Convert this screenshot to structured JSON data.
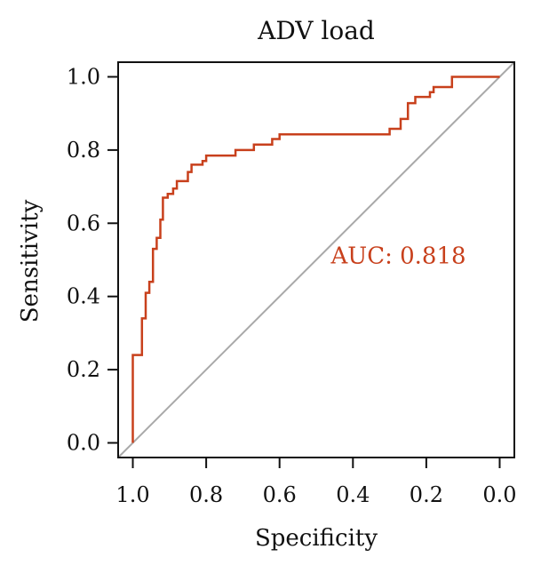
{
  "chart_data": {
    "type": "line",
    "title": "ADV load",
    "xlabel": "Specificity",
    "ylabel": "Sensitivity",
    "x_reversed": true,
    "xlim": [
      1.04,
      -0.04
    ],
    "ylim": [
      -0.04,
      1.04
    ],
    "xticks": [
      1.0,
      0.8,
      0.6,
      0.4,
      0.2,
      0.0
    ],
    "xtick_labels": [
      "1.0",
      "0.8",
      "0.6",
      "0.4",
      "0.2",
      "0.0"
    ],
    "yticks": [
      0.0,
      0.2,
      0.4,
      0.6,
      0.8,
      1.0
    ],
    "ytick_labels": [
      "0.0",
      "0.2",
      "0.4",
      "0.6",
      "0.8",
      "1.0"
    ],
    "grid": false,
    "series": [
      {
        "role": "roc",
        "color": "#c8401c",
        "points": [
          [
            1.0,
            0.0
          ],
          [
            1.0,
            0.24
          ],
          [
            0.975,
            0.24
          ],
          [
            0.975,
            0.34
          ],
          [
            0.965,
            0.34
          ],
          [
            0.965,
            0.41
          ],
          [
            0.955,
            0.41
          ],
          [
            0.955,
            0.44
          ],
          [
            0.945,
            0.44
          ],
          [
            0.945,
            0.53
          ],
          [
            0.935,
            0.53
          ],
          [
            0.935,
            0.56
          ],
          [
            0.925,
            0.56
          ],
          [
            0.925,
            0.61
          ],
          [
            0.918,
            0.61
          ],
          [
            0.918,
            0.67
          ],
          [
            0.905,
            0.67
          ],
          [
            0.905,
            0.68
          ],
          [
            0.89,
            0.68
          ],
          [
            0.89,
            0.695
          ],
          [
            0.88,
            0.695
          ],
          [
            0.88,
            0.715
          ],
          [
            0.85,
            0.715
          ],
          [
            0.85,
            0.74
          ],
          [
            0.84,
            0.74
          ],
          [
            0.84,
            0.76
          ],
          [
            0.81,
            0.76
          ],
          [
            0.81,
            0.77
          ],
          [
            0.8,
            0.77
          ],
          [
            0.8,
            0.785
          ],
          [
            0.72,
            0.785
          ],
          [
            0.72,
            0.8
          ],
          [
            0.67,
            0.8
          ],
          [
            0.67,
            0.815
          ],
          [
            0.62,
            0.815
          ],
          [
            0.62,
            0.83
          ],
          [
            0.6,
            0.83
          ],
          [
            0.6,
            0.843
          ],
          [
            0.3,
            0.843
          ],
          [
            0.3,
            0.858
          ],
          [
            0.27,
            0.858
          ],
          [
            0.27,
            0.885
          ],
          [
            0.25,
            0.885
          ],
          [
            0.25,
            0.928
          ],
          [
            0.23,
            0.928
          ],
          [
            0.23,
            0.945
          ],
          [
            0.19,
            0.945
          ],
          [
            0.19,
            0.958
          ],
          [
            0.18,
            0.958
          ],
          [
            0.18,
            0.972
          ],
          [
            0.13,
            0.972
          ],
          [
            0.13,
            1.0
          ],
          [
            0.0,
            1.0
          ]
        ]
      },
      {
        "role": "reference",
        "color": "#a9a9a9",
        "points": [
          [
            1.04,
            -0.04
          ],
          [
            -0.04,
            1.04
          ]
        ]
      }
    ],
    "annotations": [
      {
        "text": "AUC: 0.818",
        "x": 0.46,
        "y": 0.49,
        "color": "#c8401c"
      }
    ]
  }
}
